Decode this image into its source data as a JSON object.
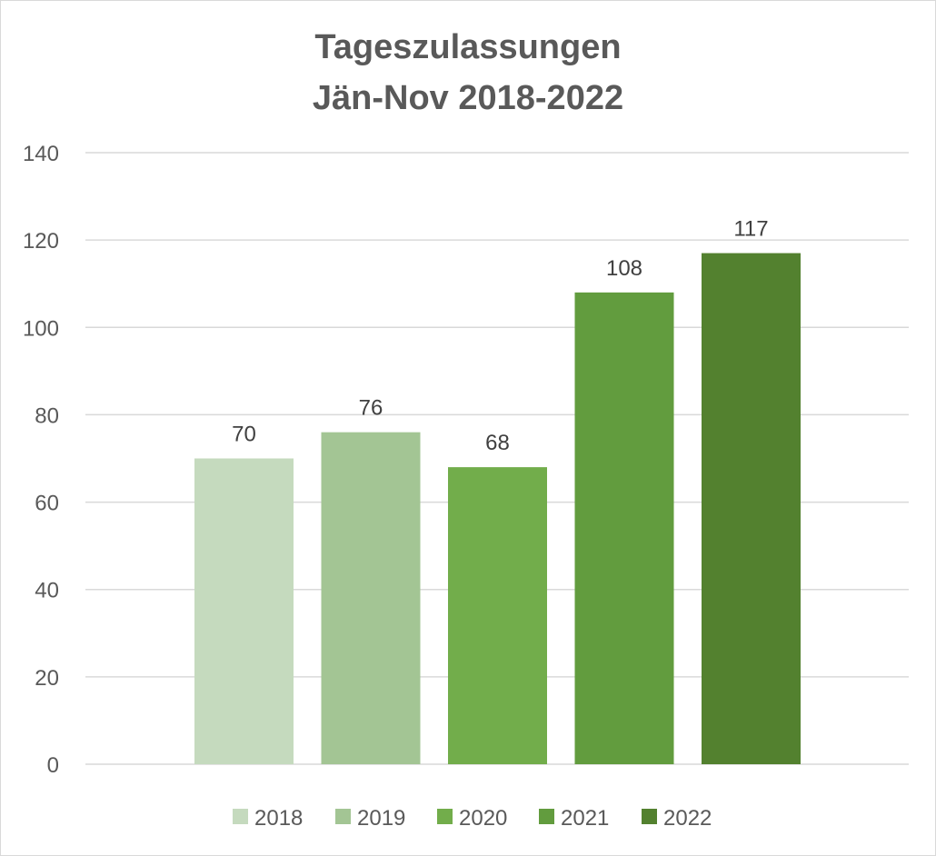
{
  "chart_data": {
    "type": "bar",
    "title_lines": [
      "Tageszulassungen",
      "Jän-Nov 2018-2022"
    ],
    "categories": [
      "2018",
      "2019",
      "2020",
      "2021",
      "2022"
    ],
    "values": [
      70,
      76,
      68,
      108,
      117
    ],
    "value_labels": [
      "70",
      "76",
      "68",
      "108",
      "117"
    ],
    "colors": [
      "#c5dabe",
      "#a3c594",
      "#72ad4b",
      "#629c3e",
      "#53812f"
    ],
    "legend": {
      "position": "bottom",
      "entries": [
        "2018",
        "2019",
        "2020",
        "2021",
        "2022"
      ]
    },
    "ylim": [
      0,
      140
    ],
    "yticks": [
      0,
      20,
      40,
      60,
      80,
      100,
      120,
      140
    ],
    "ytick_labels": [
      "0",
      "20",
      "40",
      "60",
      "80",
      "100",
      "120",
      "140"
    ],
    "grid": true,
    "xlabel": "",
    "ylabel": ""
  }
}
